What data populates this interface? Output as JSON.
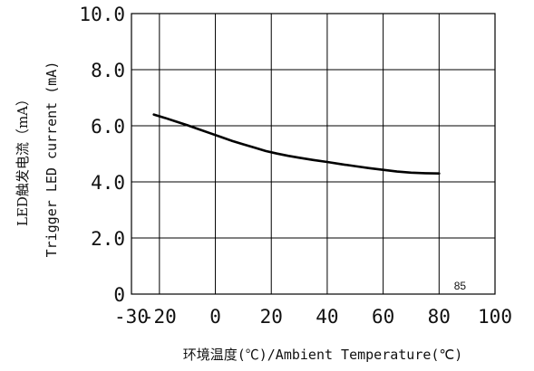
{
  "chart_data": {
    "type": "line",
    "x_tick_labels": [
      "-30",
      "-20",
      "0",
      "20",
      "40",
      "60",
      "80",
      "100"
    ],
    "y_tick_labels": [
      "10.0",
      "8.0",
      "6.0",
      "4.0",
      "2.0",
      "0"
    ],
    "x_ticks": [
      -30,
      -20,
      0,
      20,
      40,
      60,
      80,
      100
    ],
    "y_ticks": [
      10,
      8,
      6,
      4,
      2,
      0
    ],
    "xlim": [
      -30,
      100
    ],
    "ylim": [
      0,
      10
    ],
    "grid": true,
    "annotation": "85",
    "annotation_at": [
      85,
      0
    ],
    "xlabel": "环境温度(℃)/Ambient Temperature(℃)",
    "ylabel_line1": "LED触发电流（mA）",
    "ylabel_line2": "Trigger LED current (mA)",
    "series": [
      {
        "x": [
          -22,
          -18,
          -14,
          -10,
          -6,
          -2,
          2,
          6,
          10,
          14,
          18,
          22,
          26,
          30,
          35,
          40,
          45,
          50,
          55,
          60,
          65,
          70,
          75,
          80
        ],
        "y": [
          6.4,
          6.28,
          6.15,
          6.02,
          5.88,
          5.74,
          5.6,
          5.46,
          5.34,
          5.22,
          5.1,
          5.01,
          4.93,
          4.86,
          4.78,
          4.71,
          4.63,
          4.56,
          4.49,
          4.43,
          4.37,
          4.33,
          4.31,
          4.3
        ],
        "color": "#000000"
      }
    ]
  }
}
